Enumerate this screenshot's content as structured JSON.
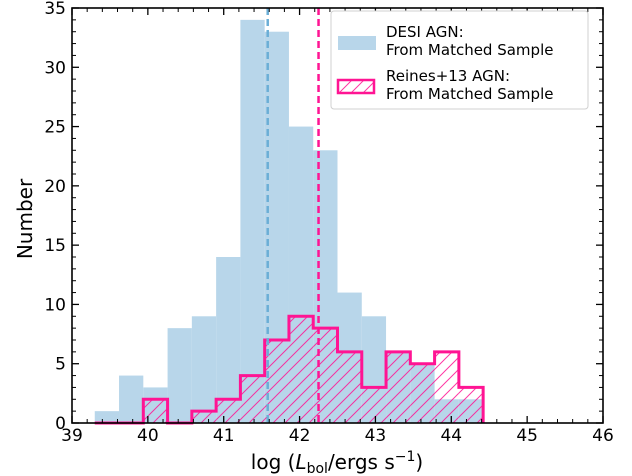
{
  "chart_data": {
    "type": "histogram",
    "xlabel": {
      "prefix": "log  (",
      "L": "L",
      "sub": "bol",
      "mid": "/ergs s",
      "sup": "−1",
      "suffix": ")"
    },
    "ylabel": "Number",
    "xlim": [
      39,
      46
    ],
    "ylim": [
      0,
      35
    ],
    "x_ticks": [
      39,
      40,
      41,
      42,
      43,
      44,
      45,
      46
    ],
    "x_tick_labels": [
      "39",
      "40",
      "41",
      "42",
      "43",
      "44",
      "45",
      "46"
    ],
    "y_ticks": [
      0,
      5,
      10,
      15,
      20,
      25,
      30,
      35
    ],
    "y_tick_labels": [
      "0",
      "5",
      "10",
      "15",
      "20",
      "25",
      "30",
      "35"
    ],
    "bin_edges": [
      39.3,
      39.62,
      39.94,
      40.26,
      40.58,
      40.9,
      41.22,
      41.54,
      41.86,
      42.18,
      42.5,
      42.82,
      43.14,
      43.46,
      43.78,
      44.1,
      44.42
    ],
    "series": [
      {
        "name": "DESI AGN:\nFrom Matched Sample",
        "legend_lines": [
          "DESI AGN:",
          "From Matched Sample"
        ],
        "style": "filled",
        "color": "#b8d6ea",
        "counts": [
          1,
          4,
          3,
          8,
          9,
          14,
          34,
          33,
          25,
          23,
          11,
          9,
          6,
          5,
          2,
          2
        ]
      },
      {
        "name": "Reines+13 AGN:\nFrom Matched Sample",
        "legend_lines": [
          "Reines+13 AGN:",
          "From Matched Sample"
        ],
        "style": "step-hatched",
        "color": "#ff1493",
        "counts": [
          0,
          0,
          2,
          0,
          1,
          2,
          4,
          7,
          9,
          8,
          6,
          3,
          6,
          5,
          6,
          3
        ]
      }
    ],
    "vlines": [
      {
        "x": 41.58,
        "color": "#6baed6",
        "style": "dashed"
      },
      {
        "x": 42.25,
        "color": "#ff1493",
        "style": "dashed"
      }
    ],
    "legend_position": "top-right"
  }
}
